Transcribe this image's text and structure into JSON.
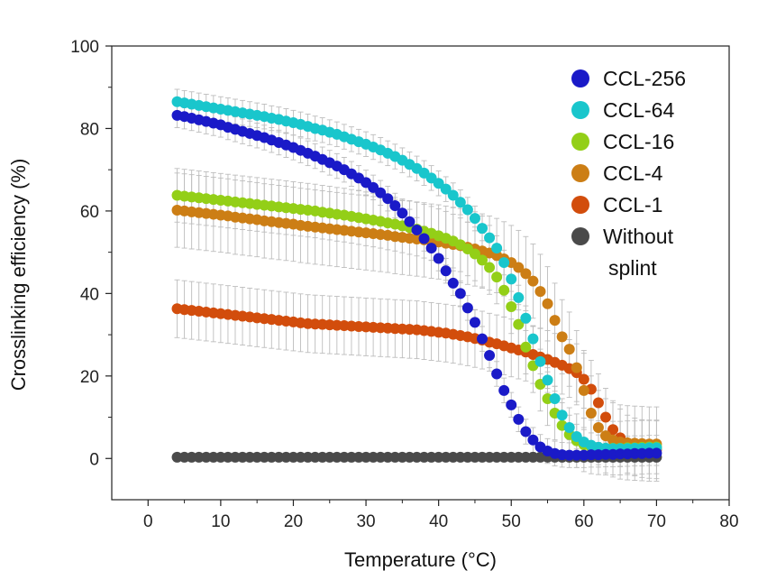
{
  "chart_data": {
    "type": "scatter",
    "title": "",
    "xlabel": "Temperature (°C)",
    "ylabel": "Crosslinking efficiency (%)",
    "xlim": [
      -5,
      80
    ],
    "ylim": [
      -10,
      100
    ],
    "xticks": [
      0,
      10,
      20,
      30,
      40,
      50,
      60,
      70,
      80
    ],
    "yticks": [
      0,
      20,
      40,
      60,
      80,
      100
    ],
    "grid": false,
    "legend_position": "top-right",
    "x": [
      4,
      5,
      6,
      7,
      8,
      9,
      10,
      11,
      12,
      13,
      14,
      15,
      16,
      17,
      18,
      19,
      20,
      21,
      22,
      23,
      24,
      25,
      26,
      27,
      28,
      29,
      30,
      31,
      32,
      33,
      34,
      35,
      36,
      37,
      38,
      39,
      40,
      41,
      42,
      43,
      44,
      45,
      46,
      47,
      48,
      49,
      50,
      51,
      52,
      53,
      54,
      55,
      56,
      57,
      58,
      59,
      60,
      61,
      62,
      63,
      64,
      65,
      66,
      67,
      68,
      69,
      70
    ],
    "series": [
      {
        "name": "CCL-256",
        "color": "#1a1ac8",
        "error": 3,
        "values": [
          83.2,
          82.9,
          82.5,
          82.1,
          81.7,
          81.3,
          80.9,
          80.3,
          79.8,
          79.3,
          78.8,
          78.3,
          77.8,
          77.2,
          76.6,
          76.0,
          75.4,
          74.7,
          74.0,
          73.3,
          72.5,
          71.7,
          70.9,
          70.0,
          69.0,
          68.0,
          66.9,
          65.7,
          64.4,
          63.0,
          61.3,
          59.5,
          57.4,
          55.4,
          53.3,
          51.0,
          48.5,
          45.5,
          42.5,
          40.0,
          36.5,
          33.0,
          29.0,
          25.0,
          20.5,
          16.5,
          13.0,
          9.5,
          6.5,
          4.5,
          2.8,
          1.8,
          1.2,
          0.9,
          0.8,
          0.8,
          0.8,
          0.9,
          0.9,
          1.0,
          1.0,
          1.1,
          1.1,
          1.2,
          1.2,
          1.3,
          1.3
        ]
      },
      {
        "name": "CCL-64",
        "color": "#19c6cc",
        "error": 3,
        "values": [
          86.5,
          86.2,
          85.9,
          85.6,
          85.3,
          85.0,
          84.7,
          84.4,
          84.1,
          83.8,
          83.5,
          83.2,
          82.9,
          82.5,
          82.2,
          81.8,
          81.4,
          81.0,
          80.5,
          80.0,
          79.6,
          79.1,
          78.6,
          78.0,
          77.4,
          76.8,
          76.2,
          75.5,
          74.8,
          74.0,
          73.2,
          72.3,
          71.3,
          70.3,
          69.2,
          68.0,
          66.7,
          65.3,
          63.8,
          62.1,
          60.3,
          58.2,
          55.8,
          53.5,
          51.0,
          47.5,
          43.5,
          39.0,
          34.0,
          29.0,
          23.5,
          19.0,
          14.5,
          10.5,
          7.5,
          5.3,
          4.0,
          3.2,
          2.7,
          2.5,
          2.4,
          2.4,
          2.4,
          2.5,
          2.5,
          2.6,
          2.6
        ]
      },
      {
        "name": "CCL-16",
        "color": "#93cf17",
        "error": 6.5,
        "values": [
          63.8,
          63.6,
          63.4,
          63.2,
          63.0,
          62.8,
          62.6,
          62.4,
          62.2,
          62.0,
          61.8,
          61.6,
          61.4,
          61.2,
          61.0,
          60.8,
          60.6,
          60.4,
          60.2,
          60.0,
          59.7,
          59.5,
          59.2,
          59.0,
          58.7,
          58.4,
          58.1,
          57.8,
          57.5,
          57.1,
          56.8,
          56.4,
          56.0,
          55.6,
          55.1,
          54.6,
          54.0,
          53.4,
          52.7,
          51.8,
          50.8,
          49.6,
          48.1,
          46.3,
          44.0,
          40.8,
          36.8,
          32.5,
          27.0,
          22.5,
          18.0,
          14.5,
          11.0,
          8.0,
          5.8,
          4.3,
          3.3,
          2.8,
          2.6,
          2.5,
          2.5,
          2.5,
          2.6,
          2.6,
          2.7,
          2.8,
          2.8
        ]
      },
      {
        "name": "CCL-4",
        "color": "#cc7e15",
        "error": 9,
        "values": [
          60.2,
          60.0,
          59.8,
          59.6,
          59.4,
          59.2,
          59.0,
          58.8,
          58.5,
          58.3,
          58.1,
          57.9,
          57.6,
          57.4,
          57.2,
          57.0,
          56.8,
          56.5,
          56.3,
          56.1,
          55.9,
          55.7,
          55.5,
          55.3,
          55.1,
          54.9,
          54.7,
          54.5,
          54.3,
          54.1,
          53.8,
          53.6,
          53.4,
          53.2,
          53.0,
          52.7,
          52.5,
          52.2,
          51.9,
          51.6,
          51.2,
          50.8,
          50.3,
          49.8,
          49.2,
          48.4,
          47.5,
          46.3,
          44.8,
          43.0,
          40.5,
          37.5,
          33.5,
          29.5,
          26.5,
          22.0,
          16.5,
          11.0,
          7.5,
          5.5,
          4.5,
          4.0,
          3.8,
          3.7,
          3.6,
          3.5,
          3.5
        ]
      },
      {
        "name": "CCL-1",
        "color": "#d24d0c",
        "error": 7,
        "values": [
          36.3,
          36.1,
          35.9,
          35.7,
          35.5,
          35.3,
          35.1,
          34.9,
          34.7,
          34.5,
          34.3,
          34.1,
          33.9,
          33.7,
          33.5,
          33.3,
          33.1,
          32.9,
          32.7,
          32.6,
          32.5,
          32.4,
          32.3,
          32.2,
          32.1,
          32.0,
          31.9,
          31.8,
          31.7,
          31.6,
          31.5,
          31.4,
          31.3,
          31.2,
          31.0,
          30.8,
          30.6,
          30.4,
          30.1,
          29.8,
          29.5,
          29.1,
          28.7,
          28.2,
          27.8,
          27.3,
          26.8,
          26.3,
          25.8,
          25.2,
          24.6,
          24.0,
          23.3,
          22.6,
          21.8,
          20.8,
          19.2,
          16.8,
          13.5,
          10.0,
          7.0,
          5.0,
          3.5,
          2.8,
          2.4,
          2.2,
          2.1
        ]
      },
      {
        "name": "Without splint",
        "color": "#4a4a4a",
        "error": 0.4,
        "values": [
          0.3,
          0.3,
          0.3,
          0.3,
          0.3,
          0.3,
          0.3,
          0.3,
          0.3,
          0.3,
          0.3,
          0.3,
          0.3,
          0.3,
          0.3,
          0.3,
          0.3,
          0.3,
          0.3,
          0.3,
          0.3,
          0.3,
          0.3,
          0.3,
          0.3,
          0.3,
          0.3,
          0.3,
          0.3,
          0.3,
          0.3,
          0.3,
          0.3,
          0.3,
          0.3,
          0.3,
          0.3,
          0.3,
          0.3,
          0.3,
          0.3,
          0.3,
          0.3,
          0.3,
          0.3,
          0.3,
          0.3,
          0.3,
          0.3,
          0.3,
          0.3,
          0.3,
          0.3,
          0.3,
          0.3,
          0.3,
          0.3,
          0.3,
          0.3,
          0.3,
          0.3,
          0.3,
          0.3,
          0.3,
          0.3,
          0.3,
          0.3
        ]
      }
    ],
    "legend": [
      {
        "label": "CCL-256",
        "color": "#1a1ac8"
      },
      {
        "label": "CCL-64",
        "color": "#19c6cc"
      },
      {
        "label": "CCL-16",
        "color": "#93cf17"
      },
      {
        "label": "CCL-4",
        "color": "#cc7e15"
      },
      {
        "label": "CCL-1",
        "color": "#d24d0c"
      },
      {
        "label": "Without",
        "label2": "splint",
        "color": "#4a4a4a"
      }
    ]
  }
}
